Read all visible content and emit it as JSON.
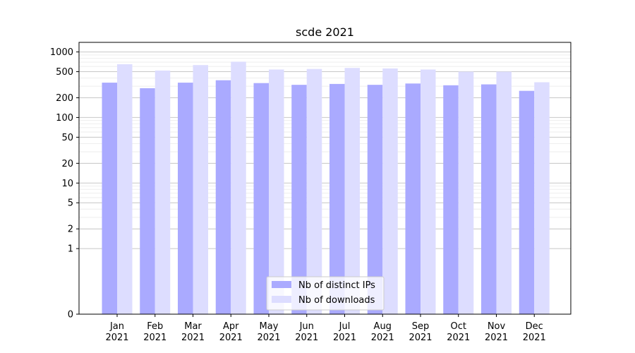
{
  "chart_data": {
    "type": "bar",
    "title": "scde 2021",
    "xlabel": "",
    "ylabel": "",
    "y_scale": "symlog",
    "ylim": [
      0,
      1400
    ],
    "yticks": [
      0,
      1,
      2,
      5,
      10,
      20,
      50,
      100,
      200,
      500,
      1000
    ],
    "ytick_labels": [
      "0",
      "1",
      "2",
      "5",
      "10",
      "20",
      "50",
      "100",
      "200",
      "500",
      "1000"
    ],
    "grid": true,
    "legend_position": "bottom-center",
    "categories": [
      {
        "month": "Jan",
        "year": "2021"
      },
      {
        "month": "Feb",
        "year": "2021"
      },
      {
        "month": "Mar",
        "year": "2021"
      },
      {
        "month": "Apr",
        "year": "2021"
      },
      {
        "month": "May",
        "year": "2021"
      },
      {
        "month": "Jun",
        "year": "2021"
      },
      {
        "month": "Jul",
        "year": "2021"
      },
      {
        "month": "Aug",
        "year": "2021"
      },
      {
        "month": "Sep",
        "year": "2021"
      },
      {
        "month": "Oct",
        "year": "2021"
      },
      {
        "month": "Nov",
        "year": "2021"
      },
      {
        "month": "Dec",
        "year": "2021"
      }
    ],
    "series": [
      {
        "name": "Nb of distinct IPs",
        "color": "#aaaaff",
        "values": [
          340,
          280,
          340,
          370,
          335,
          315,
          325,
          315,
          330,
          310,
          320,
          255
        ]
      },
      {
        "name": "Nb of downloads",
        "color": "#ddddff",
        "values": [
          650,
          520,
          630,
          710,
          540,
          550,
          570,
          560,
          540,
          500,
          500,
          345
        ]
      }
    ]
  }
}
